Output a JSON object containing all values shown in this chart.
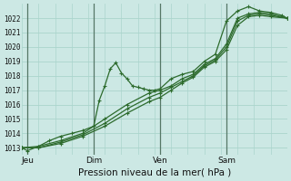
{
  "xlabel": "Pression niveau de la mer( hPa )",
  "bg_color": "#cce8e4",
  "grid_color_h": "#aad4cc",
  "grid_color_v": "#aad4cc",
  "vline_color": "#557766",
  "line_color": "#2d6b2d",
  "ylim": [
    1012.5,
    1023.0
  ],
  "xlim": [
    0,
    96
  ],
  "yticks": [
    1013,
    1014,
    1015,
    1016,
    1017,
    1018,
    1019,
    1020,
    1021,
    1022
  ],
  "xtick_labels": [
    "Jeu",
    "Dim",
    "Ven",
    "Sam"
  ],
  "xtick_positions": [
    2,
    26,
    50,
    74
  ],
  "vlines_major": [
    2,
    26,
    50,
    74
  ],
  "vlines_minor_step": 6,
  "line1_x": [
    0,
    2,
    6,
    10,
    14,
    18,
    22,
    26,
    28,
    30,
    32,
    34,
    36,
    38,
    40,
    42,
    44,
    46,
    48,
    50,
    54,
    58,
    62,
    66,
    70,
    74,
    78,
    82,
    86,
    90,
    94,
    96
  ],
  "line1_y": [
    1013.0,
    1012.8,
    1013.1,
    1013.5,
    1013.8,
    1014.0,
    1014.2,
    1014.5,
    1016.3,
    1017.3,
    1018.5,
    1018.9,
    1018.2,
    1017.8,
    1017.3,
    1017.2,
    1017.1,
    1017.0,
    1017.0,
    1017.1,
    1017.8,
    1018.1,
    1018.3,
    1019.0,
    1019.5,
    1021.8,
    1022.5,
    1022.8,
    1022.5,
    1022.4,
    1022.2,
    1022.0
  ],
  "line2_x": [
    0,
    6,
    14,
    22,
    30,
    38,
    46,
    50,
    54,
    58,
    62,
    66,
    70,
    74,
    78,
    82,
    86,
    90,
    96
  ],
  "line2_y": [
    1013.0,
    1013.1,
    1013.5,
    1014.0,
    1015.0,
    1016.0,
    1016.8,
    1017.0,
    1017.3,
    1017.8,
    1018.1,
    1018.8,
    1019.2,
    1020.2,
    1022.0,
    1022.3,
    1022.4,
    1022.3,
    1022.0
  ],
  "line3_x": [
    0,
    6,
    14,
    22,
    30,
    38,
    46,
    50,
    54,
    58,
    62,
    66,
    70,
    74,
    78,
    82,
    86,
    90,
    96
  ],
  "line3_y": [
    1013.0,
    1013.0,
    1013.4,
    1013.9,
    1014.7,
    1015.7,
    1016.5,
    1016.8,
    1017.2,
    1017.6,
    1018.0,
    1018.7,
    1019.1,
    1020.0,
    1021.8,
    1022.2,
    1022.3,
    1022.2,
    1022.0
  ],
  "line4_x": [
    0,
    6,
    14,
    22,
    30,
    38,
    46,
    50,
    54,
    58,
    62,
    66,
    70,
    74,
    78,
    82,
    86,
    90,
    96
  ],
  "line4_y": [
    1013.0,
    1013.0,
    1013.3,
    1013.8,
    1014.5,
    1015.4,
    1016.2,
    1016.5,
    1017.0,
    1017.5,
    1017.9,
    1018.6,
    1019.0,
    1019.8,
    1021.5,
    1022.1,
    1022.2,
    1022.1,
    1022.0
  ]
}
